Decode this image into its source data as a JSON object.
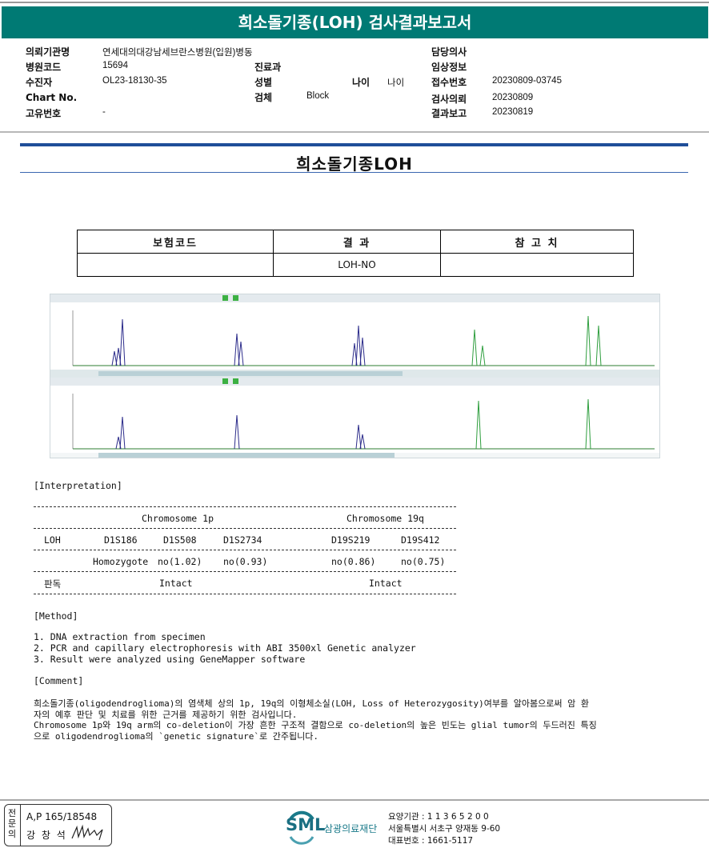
{
  "report_title": "희소돌기종(LOH) 검사결과보고서",
  "info": {
    "institution_label": "의뢰기관명",
    "institution": "연세대의대강남세브란스병원(입원)병동",
    "hospital_code_label": "병원코드",
    "hospital_code": "15694",
    "patient_label": "수진자",
    "patient": "OL23-18130-35",
    "chart_label": "Chart No.",
    "chart": "",
    "unique_label": "고유번호",
    "unique": "-",
    "dept_label": "진료과",
    "dept": "",
    "sex_label": "성별",
    "sex": "",
    "specimen_label": "검체",
    "specimen": "Block",
    "age_label": "나이",
    "age": "나이",
    "doctor_label": "담당의사",
    "doctor": "",
    "clinical_label": "임상정보",
    "clinical": "",
    "receipt_label": "접수번호",
    "receipt": "20230809-03745",
    "request_label": "검사의뢰",
    "request": "20230809",
    "report_label": "결과보고",
    "report": "20230819"
  },
  "section_title": "희소돌기종LOH",
  "result_table": {
    "headers": [
      "보험코드",
      "결 과",
      "참 고 치"
    ],
    "row": [
      "",
      "LOH-NO",
      ""
    ]
  },
  "interpretation": {
    "heading": "[Interpretation]",
    "chr1p": "Chromosome 1p",
    "chr19q": "Chromosome 19q",
    "loh_label": "LOH",
    "markers": [
      "D1S186",
      "D1S508",
      "D1S2734",
      "D19S219",
      "D19S412"
    ],
    "values": [
      "Homozygote",
      "no(1.02)",
      "no(0.93)",
      "no(0.86)",
      "no(0.75)"
    ],
    "verdict_label": "판독",
    "verdict_1p": "Intact",
    "verdict_19q": "Intact"
  },
  "method": {
    "heading": "[Method]",
    "items": [
      "1. DNA extraction from specimen",
      "2. PCR and capillary electrophoresis with ABI 3500xl Genetic analyzer",
      "3. Result were analyzed using GeneMapper software"
    ]
  },
  "comment": {
    "heading": "[Comment]",
    "lines": [
      "희소돌기종(oligodendroglioma)의 염색체 상의 1p, 19q의 이형체소실(LOH, Loss of Heterozygosity)여부를 알아봄으로써 암 환",
      "자의 예후 판단 및 치료를 위한 근거를 제공하기 위한 검사입니다.",
      "Chromosome 1p와 19q arm의 co-deletion이 가장 흔한 구조적 결함으로 co-deletion의 높은 빈도는 glial tumor의 두드러진 특징",
      "으로 oligodendroglioma의 `genetic signature`로 간주됩니다."
    ]
  },
  "footer": {
    "sig_label": "전문의",
    "ap": "A,P 165/18548",
    "doctor_name": "강 창 석",
    "logo": "SML",
    "org": "삼광의료재단",
    "lines": [
      "요양기관 : 1 1 3 6 5 2 0 0",
      "서울특별시 서초구 양재동 9-60",
      "대표번호 : 1661-5117"
    ],
    "brand_color": "#1a7a8a"
  },
  "colors": {
    "banner": "#007a74",
    "rule": "#1f4e99",
    "peak_blue": "#2b2b8a",
    "peak_green": "#2e9e3e"
  }
}
